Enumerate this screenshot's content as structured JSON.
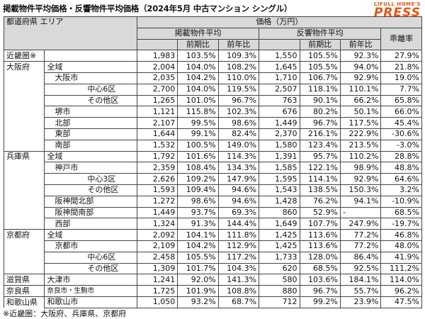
{
  "title": "掲載物件平均価格・反響物件平均価格（2024年5月 中古マンション シングル）",
  "brand": {
    "sub": "LIFULL HOME'S",
    "main": "PRESS"
  },
  "header": {
    "pref_area": "都道府県 エリア",
    "price": "価格（万円）",
    "listed": "掲載物件平均",
    "response": "反響物件平均",
    "prev_period": "前期比",
    "prev_year": "前年比",
    "divergence": "乖離率"
  },
  "rows": [
    {
      "pref": "近畿圏※",
      "area": "",
      "sub": "",
      "lp": "1,983",
      "lpp": "103.5%",
      "lpy": "109.3%",
      "rp": "1,550",
      "rpp": "105.5%",
      "rpy": "92.3%",
      "dv": "27.9%",
      "sec": true
    },
    {
      "pref": "大阪府",
      "area": "全域",
      "sub": "",
      "lp": "2,004",
      "lpp": "104.0%",
      "lpy": "108.2%",
      "rp": "1,645",
      "rpp": "105.5%",
      "rpy": "94.0%",
      "dv": "21.8%",
      "sec": true
    },
    {
      "pref": "",
      "area": "大阪市",
      "sub": "",
      "lp": "2,035",
      "lpp": "104.2%",
      "lpy": "110.0%",
      "rp": "1,710",
      "rpp": "106.7%",
      "rpy": "92.9%",
      "dv": "19.0%"
    },
    {
      "pref": "",
      "area": "",
      "sub": "中心6区",
      "lp": "2,700",
      "lpp": "104.0%",
      "lpy": "119.5%",
      "rp": "2,507",
      "rpp": "118.1%",
      "rpy": "110.1%",
      "dv": "7.7%"
    },
    {
      "pref": "",
      "area": "",
      "sub": "その他区",
      "lp": "1,265",
      "lpp": "101.0%",
      "lpy": "96.7%",
      "rp": "763",
      "rpp": "90.1%",
      "rpy": "66.2%",
      "dv": "65.8%"
    },
    {
      "pref": "",
      "area": "堺市",
      "sub": "",
      "lp": "1,121",
      "lpp": "115.8%",
      "lpy": "102.3%",
      "rp": "676",
      "rpp": "80.2%",
      "rpy": "50.1%",
      "dv": "66.0%"
    },
    {
      "pref": "",
      "area": "北部",
      "sub": "",
      "lp": "2,107",
      "lpp": "99.5%",
      "lpy": "98.6%",
      "rp": "1,449",
      "rpp": "96.7%",
      "rpy": "117.5%",
      "dv": "45.4%"
    },
    {
      "pref": "",
      "area": "東部",
      "sub": "",
      "lp": "1,644",
      "lpp": "99.1%",
      "lpy": "82.4%",
      "rp": "2,370",
      "rpp": "216.1%",
      "rpy": "222.9%",
      "dv": "-30.6%"
    },
    {
      "pref": "",
      "area": "南部",
      "sub": "",
      "lp": "1,532",
      "lpp": "100.5%",
      "lpy": "149.0%",
      "rp": "1,580",
      "rpp": "123.4%",
      "rpy": "213.5%",
      "dv": "-3.0%"
    },
    {
      "pref": "兵庫県",
      "area": "全域",
      "sub": "",
      "lp": "1,792",
      "lpp": "101.6%",
      "lpy": "114.3%",
      "rp": "1,391",
      "rpp": "95.7%",
      "rpy": "110.2%",
      "dv": "28.8%",
      "sec": true
    },
    {
      "pref": "",
      "area": "神戸市",
      "sub": "",
      "lp": "2,359",
      "lpp": "108.4%",
      "lpy": "134.3%",
      "rp": "1,585",
      "rpp": "122.1%",
      "rpy": "98.9%",
      "dv": "48.8%"
    },
    {
      "pref": "",
      "area": "",
      "sub": "中心3区",
      "lp": "2,626",
      "lpp": "109.2%",
      "lpy": "147.9%",
      "rp": "1,595",
      "rpp": "114.1%",
      "rpy": "92.9%",
      "dv": "64.6%"
    },
    {
      "pref": "",
      "area": "",
      "sub": "その他区",
      "lp": "1,593",
      "lpp": "109.4%",
      "lpy": "94.6%",
      "rp": "1,543",
      "rpp": "138.5%",
      "rpy": "150.3%",
      "dv": "3.2%"
    },
    {
      "pref": "",
      "area": "阪神間北部",
      "sub": "",
      "lp": "1,272",
      "lpp": "98.6%",
      "lpy": "94.6%",
      "rp": "1,428",
      "rpp": "76.2%",
      "rpy": "94.1%",
      "dv": "-10.9%"
    },
    {
      "pref": "",
      "area": "阪神間南部",
      "sub": "",
      "lp": "1,449",
      "lpp": "93.7%",
      "lpy": "69.3%",
      "rp": "860",
      "rpp": "52.9%",
      "rpy": "-",
      "dv": "68.5%"
    },
    {
      "pref": "",
      "area": "西部",
      "sub": "",
      "lp": "1,324",
      "lpp": "91.3%",
      "lpy": "144.4%",
      "rp": "1,649",
      "rpp": "107.7%",
      "rpy": "247.9%",
      "dv": "-19.7%"
    },
    {
      "pref": "京都府",
      "area": "全域",
      "sub": "",
      "lp": "2,092",
      "lpp": "104.1%",
      "lpy": "111.8%",
      "rp": "1,425",
      "rpp": "113.6%",
      "rpy": "77.2%",
      "dv": "46.8%",
      "sec": true
    },
    {
      "pref": "",
      "area": "京都市",
      "sub": "",
      "lp": "2,109",
      "lpp": "104.2%",
      "lpy": "112.9%",
      "rp": "1,425",
      "rpp": "113.6%",
      "rpy": "77.2%",
      "dv": "48.0%"
    },
    {
      "pref": "",
      "area": "",
      "sub": "中心6区",
      "lp": "2,458",
      "lpp": "105.5%",
      "lpy": "117.2%",
      "rp": "1,733",
      "rpp": "128.0%",
      "rpy": "86.4%",
      "dv": "41.9%"
    },
    {
      "pref": "",
      "area": "",
      "sub": "その他区",
      "lp": "1,309",
      "lpp": "101.7%",
      "lpy": "104.3%",
      "rp": "620",
      "rpp": "68.5%",
      "rpy": "92.5%",
      "dv": "111.2%"
    },
    {
      "pref": "滋賀県",
      "area": "大津市",
      "sub": "",
      "lp": "1,241",
      "lpp": "92.0%",
      "lpy": "141.3%",
      "rp": "580",
      "rpp": "103.6%",
      "rpy": "184.1%",
      "dv": "114.0%",
      "sec": true
    },
    {
      "pref": "奈良県",
      "area": "奈良市・生駒市",
      "sub": "",
      "lp": "1,725",
      "lpp": "101.9%",
      "lpy": "108.8%",
      "rp": "880",
      "rpp": "96.7%",
      "rpy": "55.7%",
      "dv": "96.2%",
      "sec": true,
      "small": true
    },
    {
      "pref": "和歌山県",
      "area": "和歌山市",
      "sub": "",
      "lp": "1,050",
      "lpp": "93.2%",
      "lpy": "68.7%",
      "rp": "712",
      "rpp": "99.2%",
      "rpy": "23.9%",
      "dv": "47.5%",
      "sec": true
    }
  ],
  "note": "※近畿圏：大阪府、兵庫県、京都府"
}
